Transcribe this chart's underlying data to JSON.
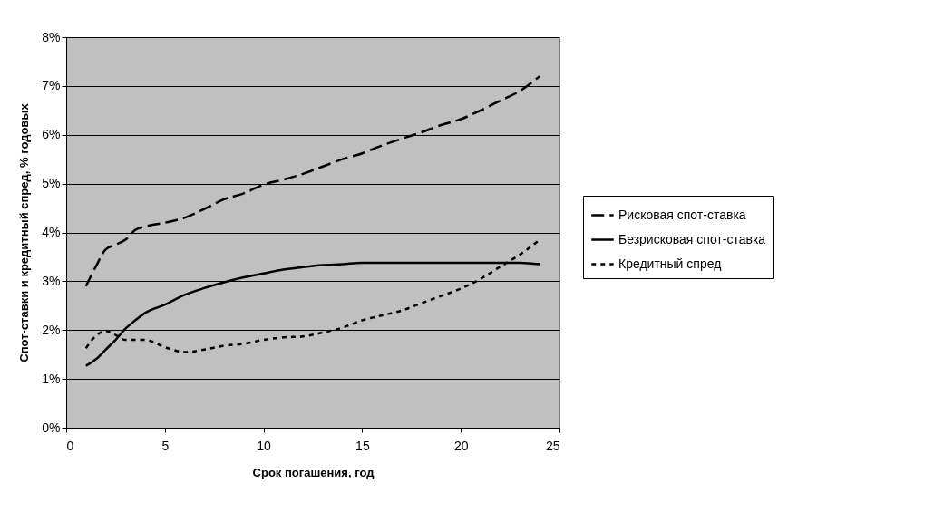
{
  "chart_data": {
    "type": "line",
    "xlabel": "Срок погашения, год",
    "ylabel": "Спот-ставки и кредитный спред, % годовых",
    "x": [
      1,
      1.5,
      2,
      2.5,
      3,
      3.5,
      4,
      5,
      6,
      7,
      8,
      9,
      10,
      11,
      12,
      13,
      14,
      15,
      16,
      17,
      18,
      19,
      20,
      21,
      22,
      23,
      24
    ],
    "series": [
      {
        "name": "Рисковая спот-ставка",
        "color": "#000000",
        "line_style": "dashed",
        "values": [
          2.9,
          3.3,
          3.65,
          3.75,
          3.85,
          4.05,
          4.12,
          4.2,
          4.3,
          4.48,
          4.68,
          4.8,
          4.98,
          5.08,
          5.2,
          5.35,
          5.5,
          5.62,
          5.78,
          5.92,
          6.05,
          6.2,
          6.32,
          6.5,
          6.7,
          6.9,
          7.2
        ]
      },
      {
        "name": "Безрисковая спот-ставка",
        "color": "#000000",
        "line_style": "solid",
        "values": [
          1.27,
          1.4,
          1.6,
          1.8,
          2.03,
          2.2,
          2.35,
          2.52,
          2.72,
          2.86,
          2.98,
          3.08,
          3.16,
          3.24,
          3.29,
          3.33,
          3.35,
          3.38,
          3.38,
          3.38,
          3.38,
          3.38,
          3.38,
          3.38,
          3.38,
          3.38,
          3.35
        ]
      },
      {
        "name": "Кредитный спред",
        "color": "#000000",
        "line_style": "dotted",
        "values": [
          1.63,
          1.88,
          1.98,
          1.9,
          1.8,
          1.8,
          1.8,
          1.65,
          1.55,
          1.6,
          1.68,
          1.72,
          1.8,
          1.85,
          1.87,
          1.95,
          2.05,
          2.2,
          2.3,
          2.4,
          2.55,
          2.7,
          2.85,
          3.05,
          3.3,
          3.55,
          3.85
        ]
      }
    ],
    "xlim": [
      0,
      25
    ],
    "xticks": [
      0,
      5,
      10,
      15,
      20,
      25
    ],
    "ylim": [
      0,
      8
    ],
    "yticks": [
      {
        "value": 0,
        "label": "0%"
      },
      {
        "value": 1,
        "label": "1%"
      },
      {
        "value": 2,
        "label": "2%"
      },
      {
        "value": 3,
        "label": "3%"
      },
      {
        "value": 4,
        "label": "4%"
      },
      {
        "value": 5,
        "label": "5%"
      },
      {
        "value": 6,
        "label": "6%"
      },
      {
        "value": 7,
        "label": "7%"
      },
      {
        "value": 8,
        "label": "8%"
      }
    ],
    "grid": "y",
    "legend": "right",
    "marker": "none"
  }
}
